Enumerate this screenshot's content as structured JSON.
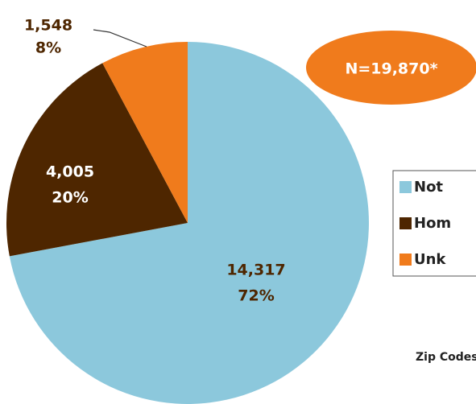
{
  "chart_data": {
    "type": "pie",
    "categories": [
      "Not",
      "Hom",
      "Unk"
    ],
    "values": [
      14317,
      4005,
      1548
    ],
    "value_labels": [
      "14,317",
      "4,005",
      "1,548"
    ],
    "percents": [
      72,
      20,
      8
    ],
    "percent_labels": [
      "72%",
      "20%",
      "8%"
    ],
    "colors": [
      "#8cc8dc",
      "#4e2600",
      "#f07b1c"
    ],
    "annotation": "N=19,870*",
    "note": "Zip Codes"
  }
}
